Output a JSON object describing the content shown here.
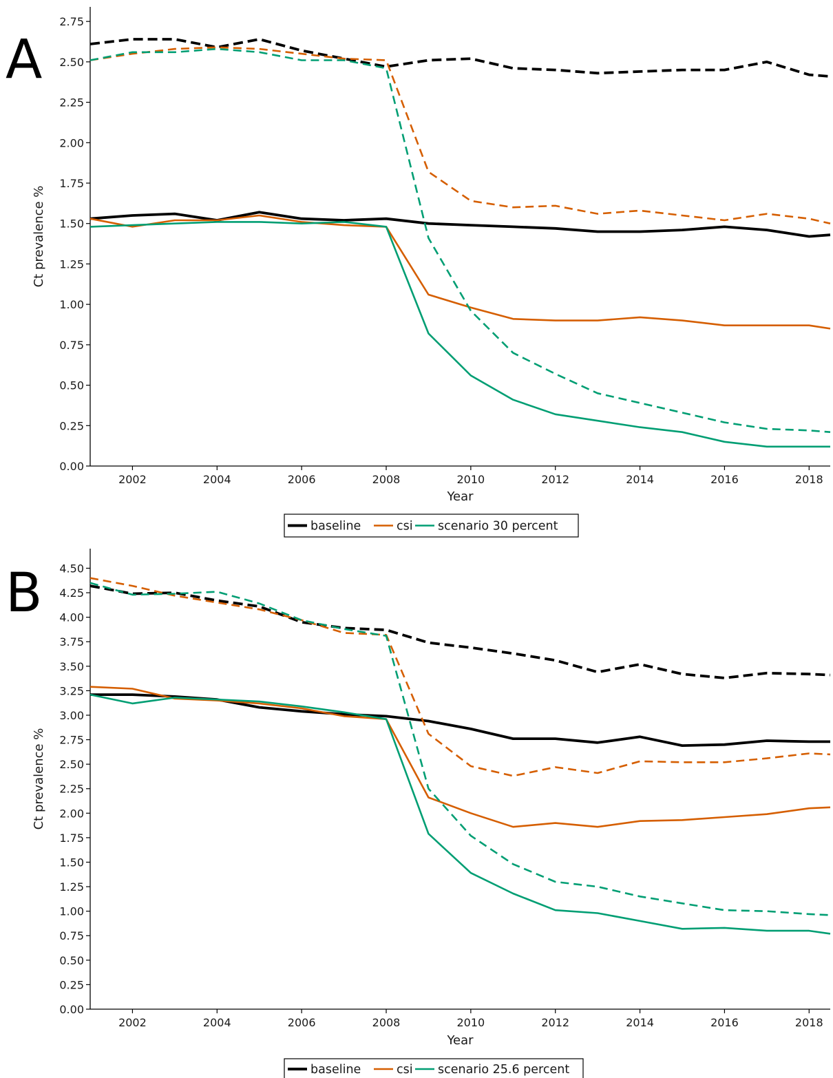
{
  "colors": {
    "baseline": "#000000",
    "csi": "#d55e00",
    "scenario": "#009e73",
    "axis": "#000000"
  },
  "chart_data": [
    {
      "type": "line",
      "panel_label": "A",
      "xlabel": "Year",
      "ylabel": "Ct prevalence %",
      "xlim": [
        2001,
        2018.5
      ],
      "ylim": [
        0,
        2.84
      ],
      "x_ticks": [
        2002,
        2004,
        2006,
        2008,
        2010,
        2012,
        2014,
        2016,
        2018
      ],
      "y_ticks": [
        0,
        0.25,
        0.5,
        0.75,
        1.0,
        1.25,
        1.5,
        1.75,
        2.0,
        2.25,
        2.5,
        2.75
      ],
      "y_tick_labels": [
        "0.00",
        "0.25",
        "0.50",
        "0.75",
        "1.00",
        "1.25",
        "1.50",
        "1.75",
        "2.00",
        "2.25",
        "2.50",
        "2.75"
      ],
      "x": [
        2001,
        2002,
        2003,
        2004,
        2005,
        2006,
        2007,
        2008,
        2009,
        2010,
        2011,
        2012,
        2013,
        2014,
        2015,
        2016,
        2017,
        2018,
        2018.5
      ],
      "legend": [
        "baseline",
        "csi",
        "scenario 30 percent"
      ],
      "legend_position": "bottom",
      "grid": false,
      "series": [
        {
          "group": "baseline",
          "style": "dashed",
          "values": [
            2.61,
            2.64,
            2.64,
            2.59,
            2.64,
            2.57,
            2.52,
            2.47,
            2.51,
            2.52,
            2.46,
            2.45,
            2.43,
            2.44,
            2.45,
            2.45,
            2.5,
            2.42,
            2.41
          ]
        },
        {
          "group": "baseline",
          "style": "solid",
          "values": [
            1.53,
            1.55,
            1.56,
            1.52,
            1.57,
            1.53,
            1.52,
            1.53,
            1.5,
            1.49,
            1.48,
            1.47,
            1.45,
            1.45,
            1.46,
            1.48,
            1.46,
            1.42,
            1.43
          ]
        },
        {
          "group": "csi",
          "style": "dashed",
          "values": [
            2.51,
            2.55,
            2.58,
            2.59,
            2.58,
            2.55,
            2.52,
            2.51,
            1.82,
            1.64,
            1.6,
            1.61,
            1.56,
            1.58,
            1.55,
            1.52,
            1.56,
            1.53,
            1.5
          ]
        },
        {
          "group": "csi",
          "style": "solid",
          "values": [
            1.53,
            1.48,
            1.52,
            1.52,
            1.55,
            1.51,
            1.49,
            1.48,
            1.06,
            0.98,
            0.91,
            0.9,
            0.9,
            0.92,
            0.9,
            0.87,
            0.87,
            0.87,
            0.85
          ]
        },
        {
          "group": "scenario",
          "style": "dashed",
          "values": [
            2.51,
            2.56,
            2.56,
            2.58,
            2.56,
            2.51,
            2.51,
            2.46,
            1.41,
            0.96,
            0.7,
            0.57,
            0.45,
            0.39,
            0.33,
            0.27,
            0.23,
            0.22,
            0.21
          ]
        },
        {
          "group": "scenario",
          "style": "solid",
          "values": [
            1.48,
            1.49,
            1.5,
            1.51,
            1.51,
            1.5,
            1.51,
            1.48,
            0.82,
            0.56,
            0.41,
            0.32,
            0.28,
            0.24,
            0.21,
            0.15,
            0.12,
            0.12,
            0.12
          ]
        }
      ]
    },
    {
      "type": "line",
      "panel_label": "B",
      "xlabel": "Year",
      "ylabel": "Ct prevalence %",
      "xlim": [
        2001,
        2018.5
      ],
      "ylim": [
        0,
        4.7
      ],
      "x_ticks": [
        2002,
        2004,
        2006,
        2008,
        2010,
        2012,
        2014,
        2016,
        2018
      ],
      "y_ticks": [
        0,
        0.25,
        0.5,
        0.75,
        1.0,
        1.25,
        1.5,
        1.75,
        2.0,
        2.25,
        2.5,
        2.75,
        3.0,
        3.25,
        3.5,
        3.75,
        4.0,
        4.25,
        4.5
      ],
      "y_tick_labels": [
        "0.00",
        "0.25",
        "0.50",
        "0.75",
        "1.00",
        "1.25",
        "1.50",
        "1.75",
        "2.00",
        "2.25",
        "2.50",
        "2.75",
        "3.00",
        "3.25",
        "3.50",
        "3.75",
        "4.00",
        "4.25",
        "4.50"
      ],
      "x": [
        2001,
        2002,
        2003,
        2004,
        2005,
        2006,
        2007,
        2008,
        2009,
        2010,
        2011,
        2012,
        2013,
        2014,
        2015,
        2016,
        2017,
        2018,
        2018.5
      ],
      "legend": [
        "baseline",
        "csi",
        "scenario 25.6 percent"
      ],
      "legend_position": "bottom",
      "grid": false,
      "series": [
        {
          "group": "baseline",
          "style": "dashed",
          "values": [
            4.32,
            4.24,
            4.25,
            4.17,
            4.11,
            3.95,
            3.89,
            3.87,
            3.74,
            3.69,
            3.63,
            3.56,
            3.44,
            3.52,
            3.42,
            3.38,
            3.43,
            3.42,
            3.41
          ]
        },
        {
          "group": "baseline",
          "style": "solid",
          "values": [
            3.21,
            3.21,
            3.19,
            3.16,
            3.08,
            3.04,
            3.01,
            2.99,
            2.94,
            2.86,
            2.76,
            2.76,
            2.72,
            2.78,
            2.69,
            2.7,
            2.74,
            2.73,
            2.73
          ]
        },
        {
          "group": "csi",
          "style": "dashed",
          "values": [
            4.4,
            4.32,
            4.22,
            4.15,
            4.08,
            3.97,
            3.84,
            3.82,
            2.81,
            2.48,
            2.38,
            2.47,
            2.41,
            2.53,
            2.52,
            2.52,
            2.56,
            2.61,
            2.6
          ]
        },
        {
          "group": "csi",
          "style": "solid",
          "values": [
            3.29,
            3.27,
            3.17,
            3.15,
            3.12,
            3.07,
            2.99,
            2.96,
            2.16,
            2.0,
            1.86,
            1.9,
            1.86,
            1.92,
            1.93,
            1.96,
            1.99,
            2.05,
            2.06
          ]
        },
        {
          "group": "scenario",
          "style": "dashed",
          "values": [
            4.35,
            4.23,
            4.24,
            4.26,
            4.14,
            3.97,
            3.88,
            3.81,
            2.25,
            1.77,
            1.48,
            1.3,
            1.25,
            1.15,
            1.08,
            1.01,
            1.0,
            0.97,
            0.96
          ]
        },
        {
          "group": "scenario",
          "style": "solid",
          "values": [
            3.21,
            3.12,
            3.18,
            3.16,
            3.14,
            3.09,
            3.03,
            2.96,
            1.79,
            1.39,
            1.18,
            1.01,
            0.98,
            0.9,
            0.82,
            0.83,
            0.8,
            0.8,
            0.77
          ]
        }
      ]
    }
  ]
}
